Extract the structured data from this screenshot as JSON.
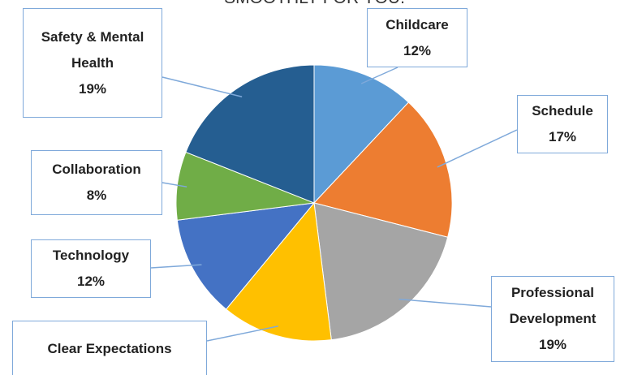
{
  "chart_data": {
    "type": "pie",
    "title": "SMOOTHLY FOR YOU.",
    "categories": [
      "Childcare",
      "Schedule",
      "Professional Development",
      "Clear Expectations",
      "Technology",
      "Collaboration",
      "Safety & Mental Health"
    ],
    "values": [
      12,
      17,
      19,
      13,
      12,
      8,
      19
    ],
    "value_labels": [
      "12%",
      "17%",
      "19%",
      null,
      "12%",
      "8%",
      "19%"
    ],
    "colors": [
      "#5B9BD5",
      "#ED7D31",
      "#A5A5A5",
      "#FFC000",
      "#4472C4",
      "#70AD47",
      "#255E91"
    ]
  }
}
